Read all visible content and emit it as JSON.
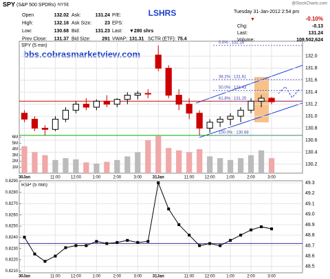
{
  "header": {
    "symbol": "SPY",
    "name": "(S&P 500 SPDRs)",
    "exchange": "NYSE",
    "title": "LSHRS",
    "date": "Tuesday 31-Jan-2012 2:54 pm",
    "credit": "@StockCharts.com",
    "change_pct": "-0.10%",
    "quote": [
      [
        "Open",
        "132.02",
        "Ask:",
        "131.24",
        "P/E:"
      ],
      [
        "High:",
        "132.18",
        "Ask Size:",
        "23",
        "EPS:"
      ],
      [
        "Low:",
        "130.68",
        "Bid:",
        "131.23",
        "Last:",
        "▼280 shrs"
      ],
      [
        "Prev Close:",
        "131.37",
        "Bid Size:",
        "291",
        "VWAP:",
        "131.31",
        "SCTR (ETF):",
        "75.4"
      ]
    ],
    "right": [
      [
        "Chg:",
        "-0.13"
      ],
      [
        "Last:",
        "131.24"
      ],
      [
        "Volume:",
        "109,502,624"
      ]
    ],
    "url": "bbs.cobrasmarketview.com"
  },
  "chart_data": [
    {
      "type": "candlestick",
      "title": "SPY (5 min)",
      "x": [
        0,
        1,
        2,
        3,
        4,
        5,
        6,
        7,
        8,
        9,
        10,
        11,
        12,
        13,
        14,
        15,
        16,
        17,
        18,
        19,
        20,
        21,
        22,
        23,
        24
      ],
      "open": [
        131.05,
        130.95,
        130.8,
        130.78,
        130.95,
        131.1,
        131.2,
        131.15,
        131.25,
        131.2,
        131.28,
        131.35,
        131.38,
        132.02,
        131.8,
        131.35,
        131.2,
        131.05,
        130.8,
        130.9,
        130.95,
        131.0,
        131.1,
        131.25,
        131.3
      ],
      "high": [
        131.1,
        131.0,
        130.85,
        131.0,
        131.15,
        131.25,
        131.3,
        131.28,
        131.35,
        131.3,
        131.4,
        131.42,
        131.45,
        132.18,
        131.85,
        131.45,
        131.3,
        131.1,
        130.95,
        131.0,
        131.05,
        131.15,
        131.3,
        131.35,
        131.32
      ],
      "low": [
        130.9,
        130.75,
        130.68,
        130.75,
        130.9,
        131.05,
        131.1,
        131.1,
        131.15,
        131.15,
        131.2,
        131.28,
        131.3,
        131.75,
        131.3,
        131.1,
        130.95,
        130.68,
        130.72,
        130.82,
        130.85,
        130.9,
        131.05,
        131.15,
        131.2
      ],
      "close": [
        130.95,
        130.8,
        130.78,
        130.95,
        131.1,
        131.2,
        131.15,
        131.25,
        131.2,
        131.28,
        131.35,
        131.38,
        131.37,
        131.8,
        131.35,
        131.2,
        131.05,
        130.8,
        130.9,
        130.95,
        131.0,
        131.1,
        131.25,
        131.3,
        131.24
      ],
      "volume": [
        4500000,
        3500000,
        3000000,
        2200000,
        2500000,
        2300000,
        1800000,
        1600000,
        1900000,
        2200000,
        2800000,
        3500000,
        5500000,
        6200000,
        4200000,
        3800000,
        3500000,
        4000000,
        2800000,
        2500000,
        2200000,
        2500000,
        3000000,
        3800000,
        2500000
      ],
      "up_color": "#000000",
      "down_color": "#cc0000",
      "volume_colors": [
        "#bbbbbb",
        "#f0a8a8"
      ],
      "xlim": [
        -0.5,
        27
      ],
      "xticks": [
        {
          "value": 0,
          "label": "30Jan"
        },
        {
          "value": 3,
          "label": "11:00"
        },
        {
          "value": 5,
          "label": "12:00"
        },
        {
          "value": 7,
          "label": "1:00"
        },
        {
          "value": 9,
          "label": "2:00"
        },
        {
          "value": 11,
          "label": "3:00"
        },
        {
          "value": 13,
          "label": "31Jan"
        },
        {
          "value": 16,
          "label": "11:00"
        },
        {
          "value": 18,
          "label": "12:00"
        },
        {
          "value": 20,
          "label": "1:00"
        },
        {
          "value": 22,
          "label": "2:00"
        },
        {
          "value": 24,
          "label": "3:00"
        }
      ],
      "ylim": [
        130.05,
        132.25
      ],
      "yticks": [
        130.2,
        130.4,
        130.6,
        130.8,
        {
          "value": 131,
          "label": "131.0"
        },
        131.2,
        131.4,
        131.6,
        131.8,
        {
          "value": 132,
          "label": "132.0"
        }
      ],
      "y2lim": [
        0,
        22000000
      ],
      "y2ticks": [
        {
          "value": 1000000,
          "label": "1M"
        },
        {
          "value": 2000000,
          "label": "2M"
        },
        {
          "value": 3000000,
          "label": "3M"
        },
        {
          "value": 4000000,
          "label": "4M"
        },
        {
          "value": 5000000,
          "label": "5M"
        },
        {
          "value": 6000000,
          "label": "6M"
        }
      ],
      "fib_levels": [
        {
          "value": 132.18,
          "label": "0.0% : 132.18"
        },
        {
          "value": 131.61,
          "label": "38.2% : 131.61"
        },
        {
          "value": 131.43,
          "label": "50.0% : 131.43"
        },
        {
          "value": 131.25,
          "label": "61.8% : 131.25"
        },
        {
          "value": 130.68,
          "label": "100.0% : 130.68"
        }
      ],
      "hlines": [
        {
          "value": 131.25,
          "color": "#cc0000"
        },
        {
          "value": 130.68,
          "color": "#00aa00"
        }
      ],
      "grid": true
    },
    {
      "type": "line",
      "title": "RSP (5 min)",
      "x": [
        0,
        1,
        2,
        3,
        4,
        5,
        6,
        7,
        8,
        9,
        10,
        11,
        12,
        13,
        14,
        15,
        16,
        17,
        18,
        19,
        20,
        21,
        22,
        23,
        24
      ],
      "series": [
        {
          "color": "#000000",
          "values": [
            48.78,
            48.62,
            48.55,
            48.6,
            48.68,
            48.7,
            48.7,
            48.74,
            48.72,
            48.73,
            48.75,
            48.73,
            48.74,
            49.3,
            49.05,
            48.9,
            48.8,
            48.7,
            48.72,
            48.7,
            48.75,
            48.8,
            48.85,
            48.88,
            48.86
          ]
        }
      ],
      "xlim": [
        -0.5,
        27
      ],
      "xticks": [
        {
          "value": 0,
          "label": "30Jan"
        },
        {
          "value": 3,
          "label": "11:00"
        },
        {
          "value": 5,
          "label": "12:00"
        },
        {
          "value": 7,
          "label": "1:00"
        },
        {
          "value": 9,
          "label": "2:00"
        },
        {
          "value": 11,
          "label": "3:00"
        },
        {
          "value": 13,
          "label": "31Jan"
        },
        {
          "value": 16,
          "label": "11:00"
        },
        {
          "value": 18,
          "label": "12:00"
        },
        {
          "value": 20,
          "label": "1:00"
        },
        {
          "value": 22,
          "label": "2:00"
        },
        {
          "value": 24,
          "label": "3:00"
        }
      ],
      "ylim": [
        48.44,
        49.32
      ],
      "yticks": [
        48.5,
        48.6,
        48.7,
        48.8,
        48.9,
        {
          "value": 49,
          "label": "49.0"
        },
        49.1,
        49.2,
        49.3
      ],
      "y2lim": [
        0.82084,
        0.82904
      ],
      "y2ticks": [
        {
          "value": 0.821,
          "label": "0.8210"
        },
        {
          "value": 0.822,
          "label": "0.8220"
        },
        {
          "value": 0.823,
          "label": "0.8230"
        },
        {
          "value": 0.824,
          "label": "0.8240"
        },
        {
          "value": 0.825,
          "label": "0.8250"
        },
        {
          "value": 0.826,
          "label": "0.8260"
        },
        {
          "value": 0.827,
          "label": "0.8270"
        },
        {
          "value": 0.828,
          "label": "0.8280"
        },
        {
          "value": 0.829,
          "label": "0.8290"
        }
      ],
      "hlines": [
        {
          "value": 48.72,
          "color": "#3333aa"
        }
      ],
      "grid": true
    }
  ]
}
